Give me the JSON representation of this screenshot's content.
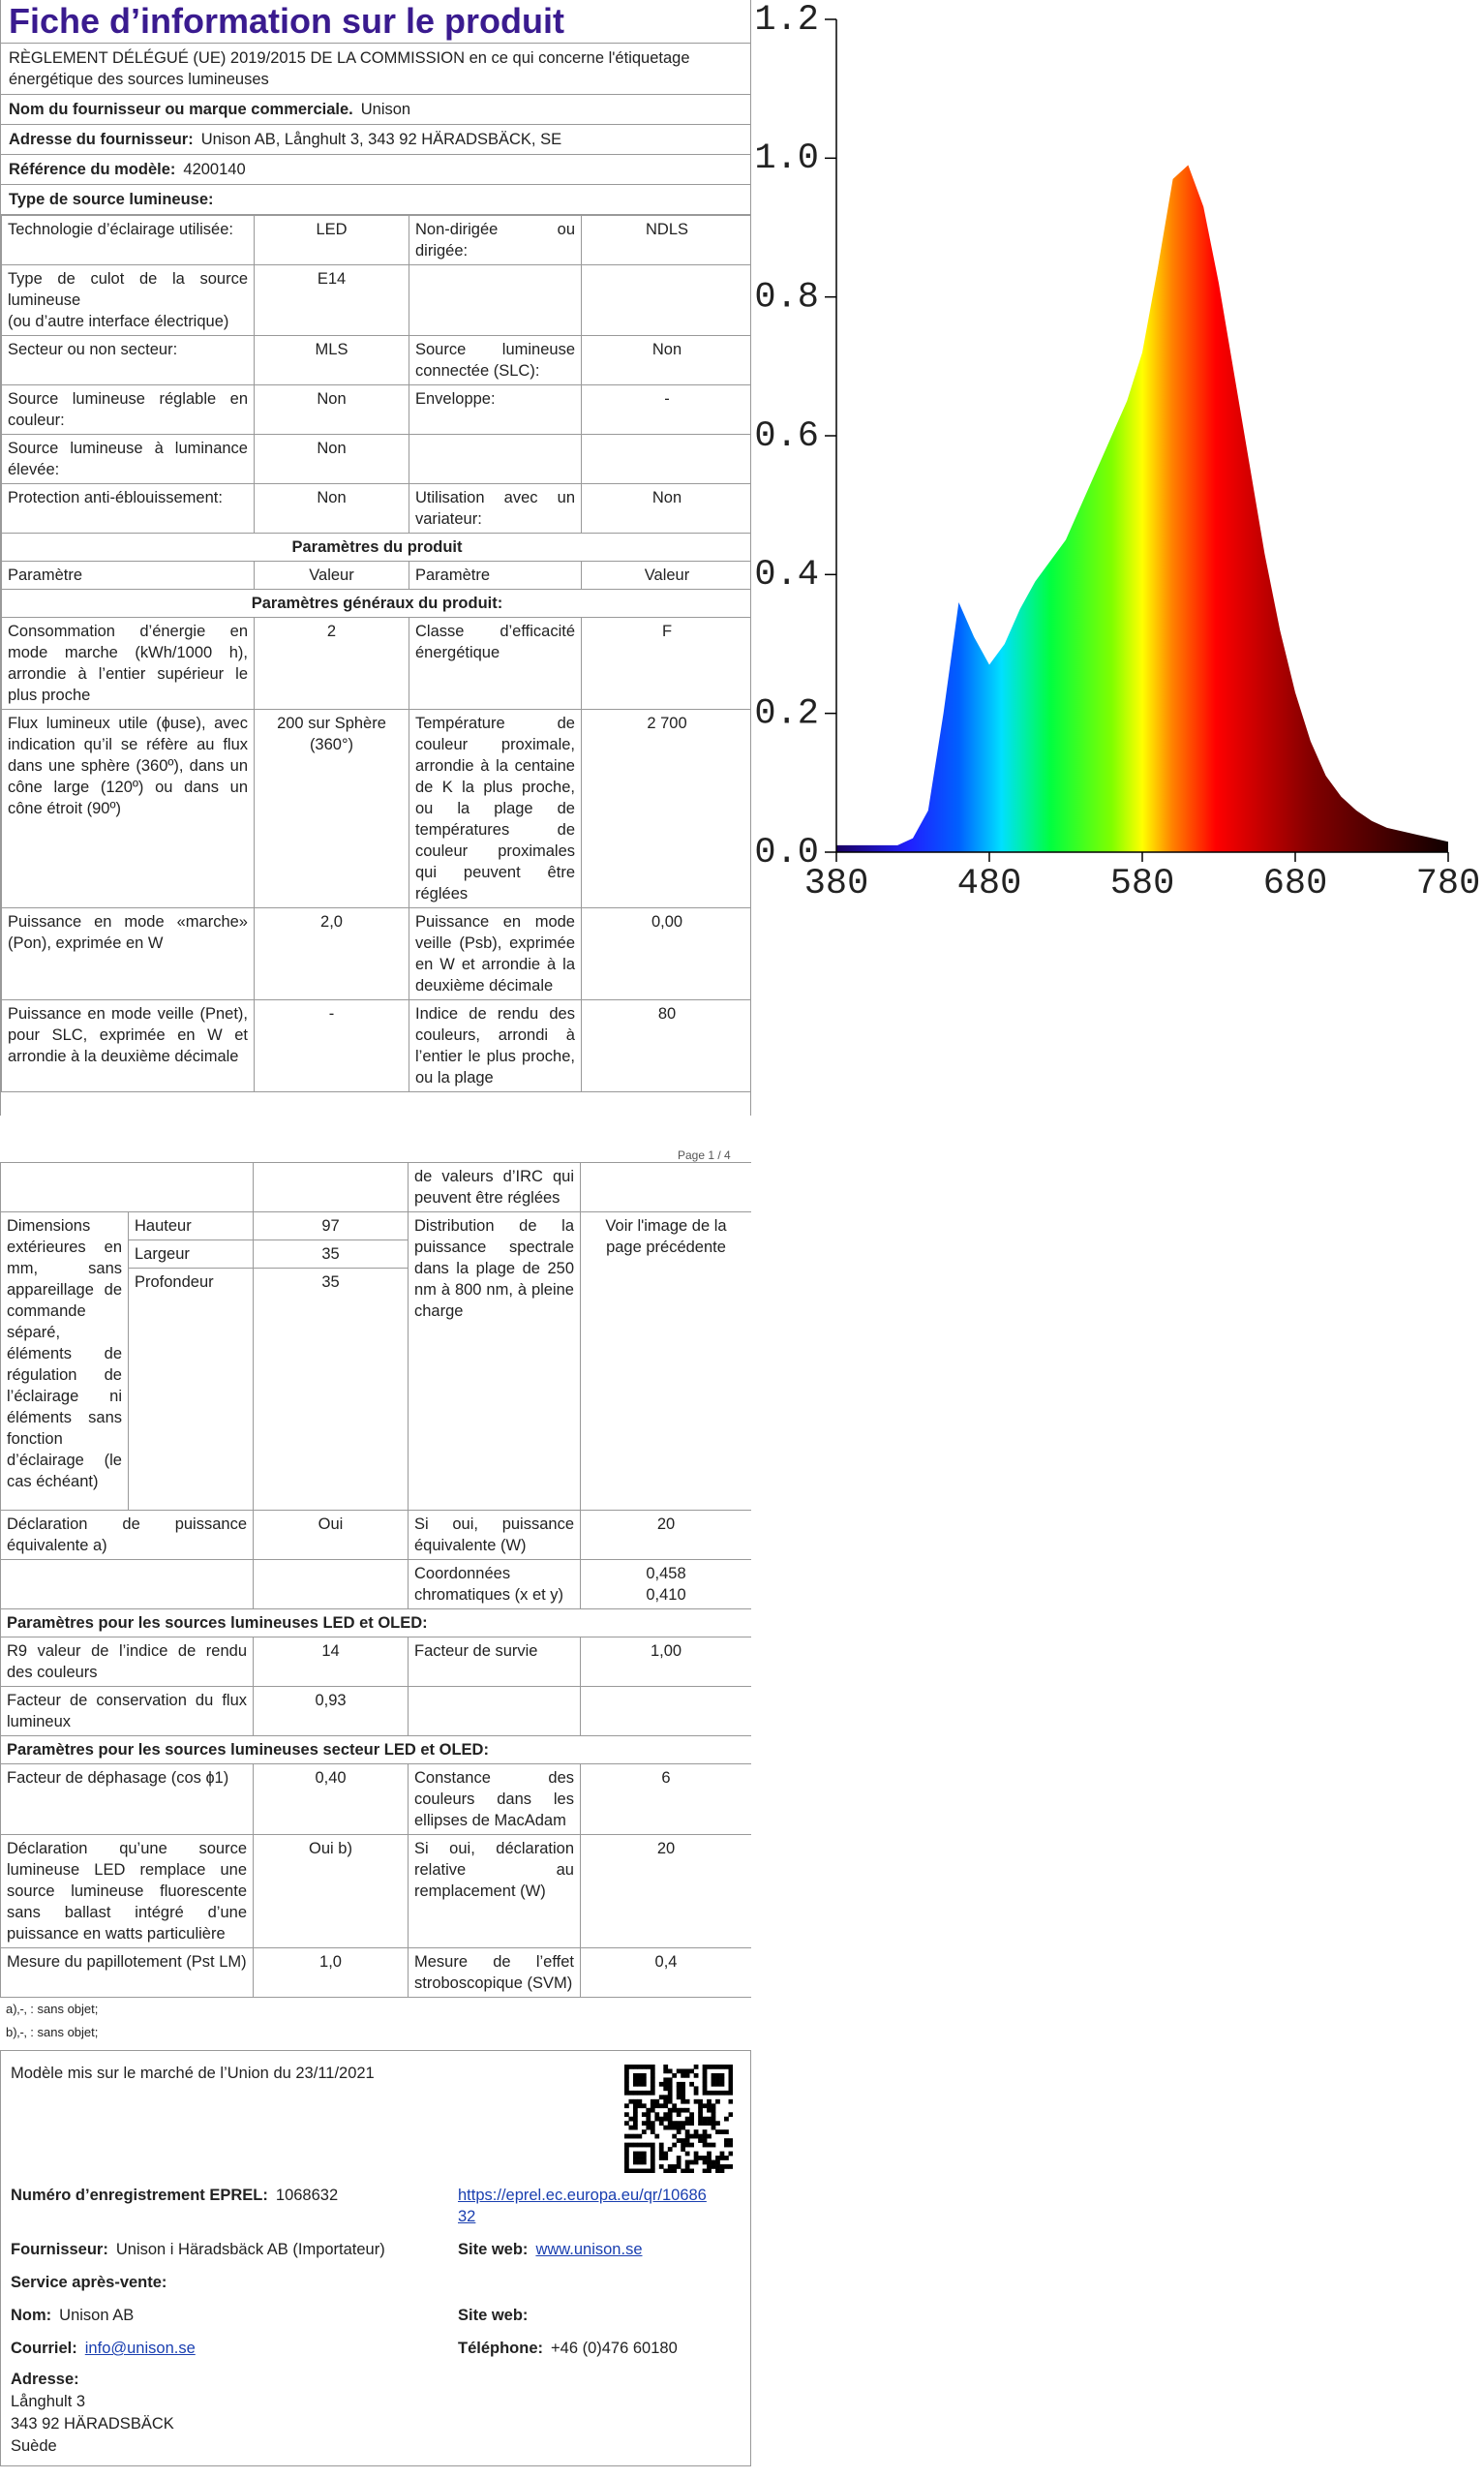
{
  "chart_data": {
    "type": "area",
    "x": [
      380,
      390,
      400,
      410,
      420,
      430,
      440,
      450,
      460,
      470,
      480,
      490,
      500,
      510,
      520,
      530,
      540,
      550,
      560,
      570,
      580,
      590,
      600,
      610,
      620,
      630,
      640,
      650,
      660,
      670,
      680,
      690,
      700,
      710,
      720,
      730,
      740,
      750,
      760,
      770,
      780
    ],
    "values": [
      0.01,
      0.01,
      0.01,
      0.01,
      0.01,
      0.02,
      0.06,
      0.2,
      0.36,
      0.31,
      0.27,
      0.3,
      0.35,
      0.39,
      0.42,
      0.45,
      0.5,
      0.55,
      0.6,
      0.65,
      0.72,
      0.84,
      0.97,
      0.99,
      0.93,
      0.82,
      0.69,
      0.56,
      0.43,
      0.32,
      0.23,
      0.16,
      0.11,
      0.08,
      0.06,
      0.045,
      0.035,
      0.03,
      0.025,
      0.02,
      0.015
    ],
    "xlim": [
      380,
      780
    ],
    "xticks": [
      380,
      480,
      580,
      680,
      780
    ],
    "ylim": [
      0,
      1.2
    ],
    "yticks": [
      {
        "value": 0,
        "label": "0.0"
      },
      {
        "value": 0.2,
        "label": "0.2"
      },
      {
        "value": 0.4,
        "label": "0.4"
      },
      {
        "value": 0.6,
        "label": "0.6"
      },
      {
        "value": 0.8,
        "label": "0.8"
      },
      {
        "value": 1,
        "label": "1.0"
      },
      {
        "value": 1.2,
        "label": "1.2"
      }
    ]
  },
  "page1": {
    "title": "Fiche d’information sur le produit",
    "regulation": "RÈGLEMENT DÉLÉGUÉ (UE) 2019/2015 DE LA COMMISSION en ce qui concerne l'étiquetage énergétique des sources lumineuses",
    "info": [
      [
        "Nom du fournisseur ou marque commerciale.",
        "Unison"
      ],
      [
        "Adresse du fournisseur:",
        "Unison AB, Långhult 3, 343 92 HÄRADSBÄCK, SE"
      ],
      [
        "Référence du modèle:",
        "4200140"
      ]
    ],
    "type_heading": "Type de source lumineuse:",
    "rows": [
      [
        "Technologie d’éclairage utilisée:",
        "LED",
        "Non-dirigée ou dirigée:",
        "NDLS"
      ],
      [
        "Type de culot de la source lumineuse\n(ou d’autre interface électrique)",
        "E14",
        null,
        null
      ],
      [
        "Secteur ou non secteur:",
        "MLS",
        "Source lumineuse connectée (SLC):",
        "Non"
      ],
      [
        "Source lumineuse réglable en couleur:",
        "Non",
        "Enveloppe:",
        "-"
      ],
      [
        "Source lumineuse à luminance élevée:",
        "Non",
        null,
        null
      ],
      [
        "Protection anti-éblouissement:",
        "Non",
        "Utilisation avec un variateur:",
        "Non"
      ],
      [
        "Paramètres du produit"
      ],
      [
        "Paramètre",
        "Valeur",
        "Paramètre",
        "Valeur"
      ],
      [
        "Paramètres généraux du produit:"
      ],
      [
        "Consommation d’énergie en mode marche (kWh/1000 h), arrondie à l’entier supérieur le plus proche",
        "2",
        "Classe d’efficacité énergétique",
        "F"
      ],
      [
        "Flux lumineux utile (ɸuse), avec indication qu’il se réfère au flux dans une sphère (360º), dans un cône large (120º) ou dans un cône étroit (90º)",
        "200 sur Sphère (360°)",
        "Température de couleur proximale, arrondie à la centaine de K la plus proche, ou la plage de températures de couleur proximales qui peuvent être réglées",
        "2 700"
      ],
      [
        "Puissance en mode «marche» (Pon), exprimée en W",
        "2,0",
        "Puissance en mode veille (Psb), exprimée en W et arrondie à la deuxième décimale",
        "0,00"
      ],
      [
        "Puissance en mode veille (Pnet), pour SLC, exprimée en W et arrondie à la deuxième décimale",
        "-",
        "Indice de rendu des couleurs, arrondi à l’entier le plus proche, ou la plage",
        "80"
      ]
    ]
  },
  "page2": {
    "page_label": "Page 1 / 4",
    "continuation": [
      null,
      null,
      "de valeurs d’IRC qui peuvent être réglées",
      null
    ],
    "dimensions": {
      "label": "Dimensions extérieures en mm, sans appareillage de commande séparé, éléments de régulation de l’éclairage ni éléments sans fonction d’éclairage (le cas échéant)",
      "items": [
        [
          "Hauteur",
          "97"
        ],
        [
          "Largeur",
          "35"
        ],
        [
          "Profondeur",
          "35"
        ]
      ],
      "param": "Distribution de la puissance spectrale dans la plage de 250 nm à 800 nm, à pleine charge",
      "value": "Voir l'image de la page précédente"
    },
    "rows": [
      [
        "Déclaration de puissance équivalente a)",
        "Oui",
        "Si oui, puissance équivalente (W)",
        "20"
      ],
      [
        null,
        null,
        "Coordonnées chromatiques (x et y)",
        "0,458\n0,410"
      ],
      [
        "Paramètres pour les sources lumineuses LED et OLED:"
      ],
      [
        "R9 valeur de l’indice de rendu des couleurs",
        "14",
        "Facteur de survie",
        "1,00"
      ],
      [
        "Facteur de conservation du flux lumineux",
        "0,93",
        null,
        null
      ],
      [
        "Paramètres pour les sources lumineuses secteur LED et OLED:"
      ],
      [
        "Facteur de déphasage (cos ɸ1)",
        "0,40",
        "Constance des couleurs dans les ellipses de MacAdam",
        "6"
      ],
      [
        "Déclaration qu’une source lumineuse LED remplace une source lumineuse fluorescente sans ballast intégré d’une puissance en watts particulière",
        "Oui b)",
        "Si oui, déclaration relative au remplacement (W)",
        "20"
      ],
      [
        "Mesure du papillotement (Pst LM)",
        "1,0",
        "Mesure de l’effet stroboscopique (SVM)",
        "0,4"
      ]
    ],
    "footnotes": [
      "a)‚-‚ : sans objet;",
      "b)‚-‚ : sans objet;"
    ]
  },
  "footer": {
    "market": "Modèle mis sur le marché de l’Union du 23/11/2021",
    "eprel_label": "Numéro d’enregistrement EPREL:",
    "eprel": "1068632",
    "eprel_url": "https://eprel.ec.europa.eu/qr/1068632",
    "supplier_label": "Fournisseur:",
    "supplier": "Unison i Häradsbäck AB (Importateur)",
    "site_label": "Site web:",
    "site": "www.unison.se",
    "service": "Service après-vente:",
    "name_label": "Nom:",
    "name": "Unison AB",
    "site2_label": "Site web:",
    "mail_label": "Courriel:",
    "mail": "info@unison.se",
    "phone_label": "Téléphone:",
    "phone": "+46 (0)476 60180",
    "address_label": "Adresse:",
    "address": [
      "Långhult 3",
      "343 92 HÄRADSBÄCK",
      "Suède"
    ]
  }
}
